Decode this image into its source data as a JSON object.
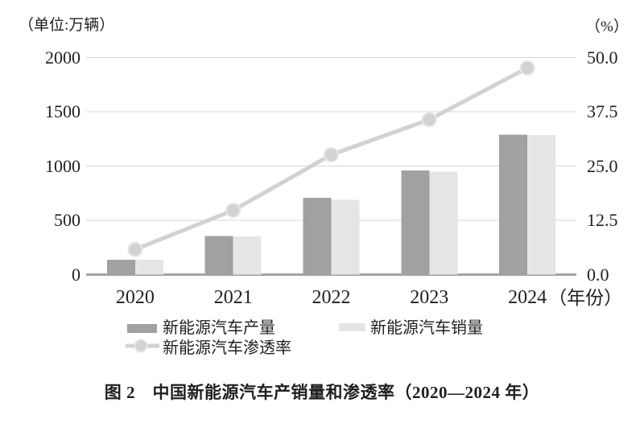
{
  "figure": {
    "caption": "图 2　中国新能源汽车产销量和渗透率（2020—2024 年）",
    "left_axis_unit": "（单位:万辆）",
    "right_axis_unit": "（%）",
    "year_axis_suffix": "（年份）"
  },
  "legend": {
    "production": "新能源汽车产量",
    "sales": "新能源汽车销量",
    "penetration": "新能源汽车渗透率"
  },
  "colors": {
    "production_bar": "#a1a1a1",
    "sales_bar": "#e5e5e5",
    "penetration_line": "#d2d2d2",
    "marker_ring": "#e6e6e6",
    "gridline": "#d8d8d8",
    "axis_line": "#a3a3a3",
    "text": "#1f1f1f"
  },
  "chart_data": {
    "type": "combo-bar-line",
    "title": "中国新能源汽车产销量和渗透率（2020—2024年）",
    "categories": [
      "2020",
      "2021",
      "2022",
      "2023",
      "2024"
    ],
    "series": [
      {
        "name": "新能源汽车产量",
        "type": "bar",
        "axis": "left",
        "values": [
          136.6,
          354.5,
          705.8,
          958.7,
          1288.8
        ]
      },
      {
        "name": "新能源汽车销量",
        "type": "bar",
        "axis": "left",
        "values": [
          136.7,
          352.1,
          688.7,
          949.5,
          1286.6
        ]
      },
      {
        "name": "新能源汽车渗透率",
        "type": "line",
        "axis": "right",
        "values": [
          5.8,
          14.8,
          27.6,
          35.7,
          47.6
        ]
      }
    ],
    "left_axis": {
      "unit": "万辆",
      "min": 0,
      "max": 2000,
      "ticks": [
        0,
        500,
        1000,
        1500,
        2000
      ],
      "tick_labels": [
        "0",
        "500",
        "1000",
        "1500",
        "2000"
      ]
    },
    "right_axis": {
      "unit": "%",
      "min": 0,
      "max": 50,
      "ticks": [
        0,
        12.5,
        25,
        37.5,
        50
      ],
      "tick_labels": [
        "0.0",
        "12.5",
        "25.0",
        "37.5",
        "50.0"
      ]
    },
    "xlabel": "年份",
    "grid": true,
    "legend_position": "bottom"
  }
}
